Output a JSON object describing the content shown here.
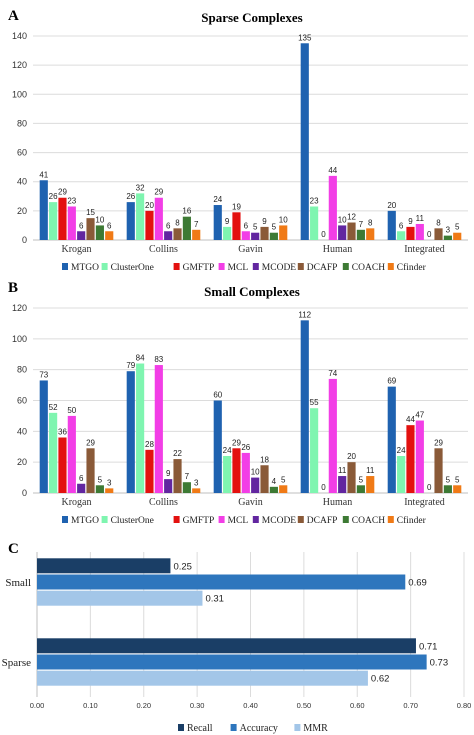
{
  "panels": {
    "a": {
      "letter": "A"
    },
    "b": {
      "letter": "B"
    },
    "c": {
      "letter": "C"
    }
  },
  "colors": {
    "MTGO": "#1f62b0",
    "ClusterOne": "#7ff5b0",
    "GMFTP": "#e3110f",
    "MCL": "#f23ee6",
    "MCODE": "#6226a0",
    "DCAFP": "#8a5a38",
    "COACH": "#3d7a34",
    "Cfinder": "#f07a16",
    "Recall": "#1a3e66",
    "Accuracy": "#2e76bd",
    "MMR": "#a3c6e8"
  },
  "chart_data": [
    {
      "type": "bar",
      "title": "Sparse Complexes",
      "categories": [
        "Krogan",
        "Collins",
        "Gavin",
        "Human",
        "Integrated"
      ],
      "ylim": [
        0,
        140
      ],
      "yticks": [
        0,
        20,
        40,
        60,
        80,
        100,
        120,
        140
      ],
      "grid": true,
      "legend": "bottom",
      "series": [
        {
          "name": "MTGO",
          "values": [
            41,
            26,
            24,
            135,
            20
          ]
        },
        {
          "name": "ClusterOne",
          "values": [
            26,
            32,
            9,
            23,
            6
          ]
        },
        {
          "name": "GMFTP",
          "values": [
            29,
            20,
            19,
            0,
            9
          ]
        },
        {
          "name": "MCL",
          "values": [
            23,
            29,
            6,
            44,
            11
          ]
        },
        {
          "name": "MCODE",
          "values": [
            6,
            6,
            5,
            10,
            0
          ]
        },
        {
          "name": "DCAFP",
          "values": [
            15,
            8,
            9,
            12,
            8
          ]
        },
        {
          "name": "COACH",
          "values": [
            10,
            16,
            5,
            7,
            3
          ]
        },
        {
          "name": "Cfinder",
          "values": [
            6,
            7,
            10,
            8,
            5
          ]
        }
      ]
    },
    {
      "type": "bar",
      "title": "Small Complexes",
      "categories": [
        "Krogan",
        "Collins",
        "Gavin",
        "Human",
        "Integrated"
      ],
      "ylim": [
        0,
        120
      ],
      "yticks": [
        0,
        20,
        40,
        60,
        80,
        100,
        120
      ],
      "grid": true,
      "legend": "bottom",
      "series": [
        {
          "name": "MTGO",
          "values": [
            73,
            79,
            60,
            112,
            69
          ]
        },
        {
          "name": "ClusterOne",
          "values": [
            52,
            84,
            24,
            55,
            24
          ]
        },
        {
          "name": "GMFTP",
          "values": [
            36,
            28,
            29,
            0,
            44
          ]
        },
        {
          "name": "MCL",
          "values": [
            50,
            83,
            26,
            74,
            47
          ]
        },
        {
          "name": "MCODE",
          "values": [
            6,
            9,
            10,
            11,
            0
          ]
        },
        {
          "name": "DCAFP",
          "values": [
            29,
            22,
            18,
            20,
            29
          ]
        },
        {
          "name": "COACH",
          "values": [
            5,
            7,
            4,
            5,
            5
          ]
        },
        {
          "name": "Cfinder",
          "values": [
            3,
            3,
            5,
            11,
            5
          ]
        }
      ]
    },
    {
      "type": "bar",
      "orientation": "horizontal",
      "categories": [
        "Small",
        "Sparse"
      ],
      "xlim": [
        0,
        0.8
      ],
      "xticks": [
        "0.00",
        "0.10",
        "0.20",
        "0.30",
        "0.40",
        "0.50",
        "0.60",
        "0.70",
        "0.80"
      ],
      "grid": true,
      "legend": "bottom",
      "series": [
        {
          "name": "Recall",
          "values": [
            0.25,
            0.71
          ]
        },
        {
          "name": "Accuracy",
          "values": [
            0.69,
            0.73
          ]
        },
        {
          "name": "MMR",
          "values": [
            0.31,
            0.62
          ]
        }
      ]
    }
  ]
}
